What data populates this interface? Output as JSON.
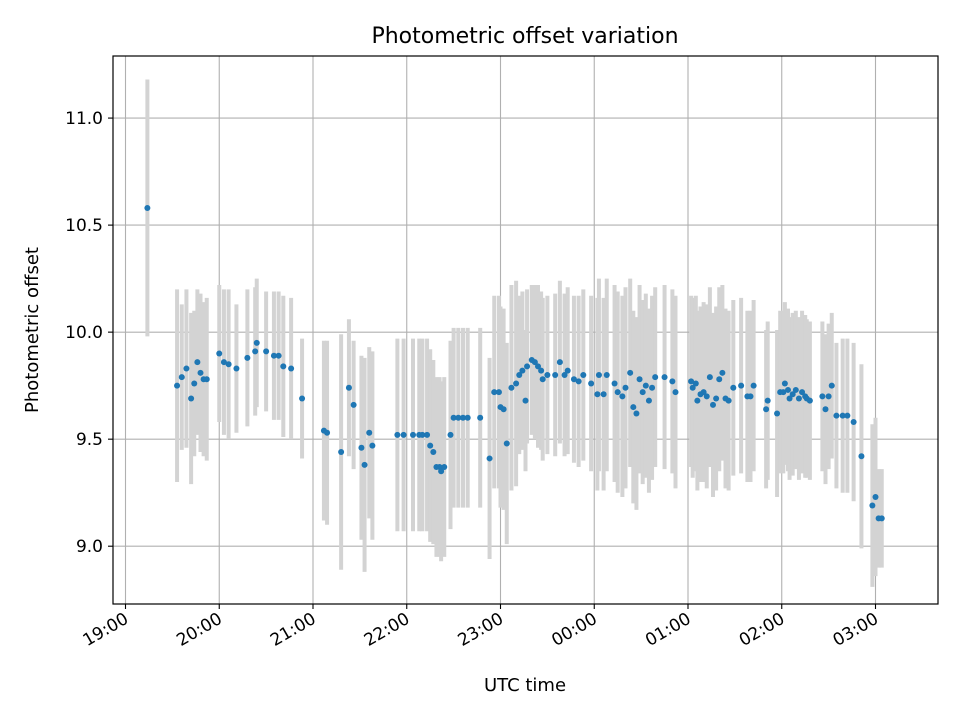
{
  "chart_data": {
    "type": "scatter",
    "title": "Photometric offset variation",
    "xlabel": "UTC time",
    "ylabel": "Photometric offset",
    "x_axis": {
      "type": "time",
      "range": [
        "18:52",
        "03:40"
      ],
      "tick_labels": [
        "19:00",
        "20:00",
        "21:00",
        "22:00",
        "23:00",
        "00:00",
        "01:00",
        "02:00",
        "03:00"
      ]
    },
    "y_axis": {
      "range": [
        8.73,
        11.29
      ],
      "tick_values": [
        9.0,
        9.5,
        10.0,
        10.5,
        11.0
      ],
      "tick_labels": [
        "9.0",
        "9.5",
        "10.0",
        "10.5",
        "11.0"
      ]
    },
    "grid": true,
    "colors": {
      "points": "#1f77b4",
      "errorbars": "#d3d3d3"
    },
    "series": [
      {
        "points": [
          {
            "x": "19:14",
            "y": 10.58,
            "err": 0.6
          },
          {
            "x": "19:33",
            "y": 9.75,
            "err": 0.45
          },
          {
            "x": "19:36",
            "y": 9.79,
            "err": 0.34
          },
          {
            "x": "19:39",
            "y": 9.83,
            "err": 0.37
          },
          {
            "x": "19:42",
            "y": 9.69,
            "err": 0.4
          },
          {
            "x": "19:44",
            "y": 9.76,
            "err": 0.34
          },
          {
            "x": "19:46",
            "y": 9.86,
            "err": 0.34
          },
          {
            "x": "19:48",
            "y": 9.81,
            "err": 0.37
          },
          {
            "x": "19:50",
            "y": 9.78,
            "err": 0.36
          },
          {
            "x": "19:52",
            "y": 9.78,
            "err": 0.38
          },
          {
            "x": "20:00",
            "y": 9.9,
            "err": 0.32
          },
          {
            "x": "20:03",
            "y": 9.86,
            "err": 0.34
          },
          {
            "x": "20:06",
            "y": 9.85,
            "err": 0.35
          },
          {
            "x": "20:11",
            "y": 9.83,
            "err": 0.3
          },
          {
            "x": "20:18",
            "y": 9.88,
            "err": 0.32
          },
          {
            "x": "20:23",
            "y": 9.91,
            "err": 0.3
          },
          {
            "x": "20:24",
            "y": 9.95,
            "err": 0.3
          },
          {
            "x": "20:30",
            "y": 9.91,
            "err": 0.28
          },
          {
            "x": "20:35",
            "y": 9.89,
            "err": 0.3
          },
          {
            "x": "20:38",
            "y": 9.89,
            "err": 0.3
          },
          {
            "x": "20:41",
            "y": 9.84,
            "err": 0.33
          },
          {
            "x": "20:46",
            "y": 9.83,
            "err": 0.33
          },
          {
            "x": "20:53",
            "y": 9.69,
            "err": 0.28
          },
          {
            "x": "21:07",
            "y": 9.54,
            "err": 0.42
          },
          {
            "x": "21:09",
            "y": 9.53,
            "err": 0.43
          },
          {
            "x": "21:18",
            "y": 9.44,
            "err": 0.55
          },
          {
            "x": "21:23",
            "y": 9.74,
            "err": 0.32
          },
          {
            "x": "21:26",
            "y": 9.66,
            "err": 0.3
          },
          {
            "x": "21:31",
            "y": 9.46,
            "err": 0.43
          },
          {
            "x": "21:33",
            "y": 9.38,
            "err": 0.5
          },
          {
            "x": "21:36",
            "y": 9.53,
            "err": 0.4
          },
          {
            "x": "21:38",
            "y": 9.47,
            "err": 0.44
          },
          {
            "x": "21:54",
            "y": 9.52,
            "err": 0.45
          },
          {
            "x": "21:58",
            "y": 9.52,
            "err": 0.45
          },
          {
            "x": "22:04",
            "y": 9.52,
            "err": 0.45
          },
          {
            "x": "22:08",
            "y": 9.52,
            "err": 0.45
          },
          {
            "x": "22:10",
            "y": 9.52,
            "err": 0.45
          },
          {
            "x": "22:13",
            "y": 9.52,
            "err": 0.45
          },
          {
            "x": "22:15",
            "y": 9.47,
            "err": 0.45
          },
          {
            "x": "22:17",
            "y": 9.44,
            "err": 0.43
          },
          {
            "x": "22:19",
            "y": 9.37,
            "err": 0.42
          },
          {
            "x": "22:21",
            "y": 9.37,
            "err": 0.42
          },
          {
            "x": "22:22",
            "y": 9.35,
            "err": 0.42
          },
          {
            "x": "22:24",
            "y": 9.37,
            "err": 0.42
          },
          {
            "x": "22:28",
            "y": 9.52,
            "err": 0.44
          },
          {
            "x": "22:30",
            "y": 9.6,
            "err": 0.42
          },
          {
            "x": "22:33",
            "y": 9.6,
            "err": 0.42
          },
          {
            "x": "22:36",
            "y": 9.6,
            "err": 0.42
          },
          {
            "x": "22:39",
            "y": 9.6,
            "err": 0.42
          },
          {
            "x": "22:47",
            "y": 9.6,
            "err": 0.42
          },
          {
            "x": "22:53",
            "y": 9.41,
            "err": 0.47
          },
          {
            "x": "22:56",
            "y": 9.72,
            "err": 0.45
          },
          {
            "x": "22:59",
            "y": 9.72,
            "err": 0.45
          },
          {
            "x": "23:00",
            "y": 9.65,
            "err": 0.47
          },
          {
            "x": "23:02",
            "y": 9.64,
            "err": 0.47
          },
          {
            "x": "23:04",
            "y": 9.48,
            "err": 0.47
          },
          {
            "x": "23:07",
            "y": 9.74,
            "err": 0.48
          },
          {
            "x": "23:10",
            "y": 9.76,
            "err": 0.48
          },
          {
            "x": "23:12",
            "y": 9.8,
            "err": 0.37
          },
          {
            "x": "23:14",
            "y": 9.82,
            "err": 0.37
          },
          {
            "x": "23:16",
            "y": 9.68,
            "err": 0.33
          },
          {
            "x": "23:17",
            "y": 9.84,
            "err": 0.36
          },
          {
            "x": "23:20",
            "y": 9.87,
            "err": 0.35
          },
          {
            "x": "23:22",
            "y": 9.86,
            "err": 0.36
          },
          {
            "x": "23:24",
            "y": 9.84,
            "err": 0.38
          },
          {
            "x": "23:26",
            "y": 9.82,
            "err": 0.37
          },
          {
            "x": "23:27",
            "y": 9.78,
            "err": 0.38
          },
          {
            "x": "23:30",
            "y": 9.8,
            "err": 0.37
          },
          {
            "x": "23:35",
            "y": 9.8,
            "err": 0.38
          },
          {
            "x": "23:38",
            "y": 9.86,
            "err": 0.38
          },
          {
            "x": "23:41",
            "y": 9.8,
            "err": 0.38
          },
          {
            "x": "23:43",
            "y": 9.82,
            "err": 0.39
          },
          {
            "x": "23:47",
            "y": 9.78,
            "err": 0.39
          },
          {
            "x": "23:50",
            "y": 9.77,
            "err": 0.4
          },
          {
            "x": "23:53",
            "y": 9.8,
            "err": 0.4
          },
          {
            "x": "23:58",
            "y": 9.76,
            "err": 0.41
          },
          {
            "x": "00:02",
            "y": 9.71,
            "err": 0.45
          },
          {
            "x": "00:03",
            "y": 9.8,
            "err": 0.45
          },
          {
            "x": "00:06",
            "y": 9.71,
            "err": 0.45
          },
          {
            "x": "00:08",
            "y": 9.8,
            "err": 0.45
          },
          {
            "x": "00:13",
            "y": 9.76,
            "err": 0.46
          },
          {
            "x": "00:15",
            "y": 9.72,
            "err": 0.47
          },
          {
            "x": "00:18",
            "y": 9.7,
            "err": 0.47
          },
          {
            "x": "00:20",
            "y": 9.74,
            "err": 0.47
          },
          {
            "x": "00:23",
            "y": 9.81,
            "err": 0.44
          },
          {
            "x": "00:25",
            "y": 9.65,
            "err": 0.45
          },
          {
            "x": "00:27",
            "y": 9.62,
            "err": 0.45
          },
          {
            "x": "00:29",
            "y": 9.78,
            "err": 0.44
          },
          {
            "x": "00:31",
            "y": 9.72,
            "err": 0.43
          },
          {
            "x": "00:33",
            "y": 9.75,
            "err": 0.43
          },
          {
            "x": "00:35",
            "y": 9.68,
            "err": 0.43
          },
          {
            "x": "00:37",
            "y": 9.74,
            "err": 0.43
          },
          {
            "x": "00:39",
            "y": 9.79,
            "err": 0.42
          },
          {
            "x": "00:45",
            "y": 9.79,
            "err": 0.43
          },
          {
            "x": "00:50",
            "y": 9.77,
            "err": 0.43
          },
          {
            "x": "00:52",
            "y": 9.72,
            "err": 0.45
          },
          {
            "x": "01:02",
            "y": 9.77,
            "err": 0.4
          },
          {
            "x": "01:03",
            "y": 9.74,
            "err": 0.42
          },
          {
            "x": "01:05",
            "y": 9.76,
            "err": 0.41
          },
          {
            "x": "01:06",
            "y": 9.68,
            "err": 0.42
          },
          {
            "x": "01:08",
            "y": 9.71,
            "err": 0.41
          },
          {
            "x": "01:10",
            "y": 9.72,
            "err": 0.42
          },
          {
            "x": "01:12",
            "y": 9.7,
            "err": 0.43
          },
          {
            "x": "01:14",
            "y": 9.79,
            "err": 0.42
          },
          {
            "x": "01:16",
            "y": 9.66,
            "err": 0.43
          },
          {
            "x": "01:18",
            "y": 9.69,
            "err": 0.43
          },
          {
            "x": "01:20",
            "y": 9.78,
            "err": 0.43
          },
          {
            "x": "01:22",
            "y": 9.81,
            "err": 0.41
          },
          {
            "x": "01:24",
            "y": 9.69,
            "err": 0.42
          },
          {
            "x": "01:26",
            "y": 9.68,
            "err": 0.42
          },
          {
            "x": "01:29",
            "y": 9.74,
            "err": 0.41
          },
          {
            "x": "01:34",
            "y": 9.75,
            "err": 0.41
          },
          {
            "x": "01:38",
            "y": 9.7,
            "err": 0.4
          },
          {
            "x": "01:40",
            "y": 9.7,
            "err": 0.4
          },
          {
            "x": "01:42",
            "y": 9.75,
            "err": 0.4
          },
          {
            "x": "01:50",
            "y": 9.64,
            "err": 0.37
          },
          {
            "x": "01:51",
            "y": 9.68,
            "err": 0.37
          },
          {
            "x": "01:57",
            "y": 9.62,
            "err": 0.39
          },
          {
            "x": "01:59",
            "y": 9.72,
            "err": 0.38
          },
          {
            "x": "02:01",
            "y": 9.72,
            "err": 0.38
          },
          {
            "x": "02:02",
            "y": 9.76,
            "err": 0.38
          },
          {
            "x": "02:04",
            "y": 9.73,
            "err": 0.38
          },
          {
            "x": "02:05",
            "y": 9.69,
            "err": 0.38
          },
          {
            "x": "02:07",
            "y": 9.71,
            "err": 0.38
          },
          {
            "x": "02:09",
            "y": 9.73,
            "err": 0.37
          },
          {
            "x": "02:11",
            "y": 9.69,
            "err": 0.38
          },
          {
            "x": "02:13",
            "y": 9.72,
            "err": 0.38
          },
          {
            "x": "02:15",
            "y": 9.7,
            "err": 0.38
          },
          {
            "x": "02:16",
            "y": 9.69,
            "err": 0.37
          },
          {
            "x": "02:18",
            "y": 9.68,
            "err": 0.37
          },
          {
            "x": "02:26",
            "y": 9.7,
            "err": 0.35
          },
          {
            "x": "02:28",
            "y": 9.64,
            "err": 0.35
          },
          {
            "x": "02:30",
            "y": 9.7,
            "err": 0.34
          },
          {
            "x": "02:32",
            "y": 9.75,
            "err": 0.34
          },
          {
            "x": "02:35",
            "y": 9.61,
            "err": 0.34
          },
          {
            "x": "02:39",
            "y": 9.61,
            "err": 0.36
          },
          {
            "x": "02:42",
            "y": 9.61,
            "err": 0.36
          },
          {
            "x": "02:46",
            "y": 9.58,
            "err": 0.37
          },
          {
            "x": "02:51",
            "y": 9.42,
            "err": 0.43
          },
          {
            "x": "02:58",
            "y": 9.19,
            "err": 0.38
          },
          {
            "x": "03:00",
            "y": 9.23,
            "err": 0.37
          },
          {
            "x": "03:02",
            "y": 9.13,
            "err": 0.23
          },
          {
            "x": "03:04",
            "y": 9.13,
            "err": 0.23
          }
        ]
      }
    ]
  }
}
